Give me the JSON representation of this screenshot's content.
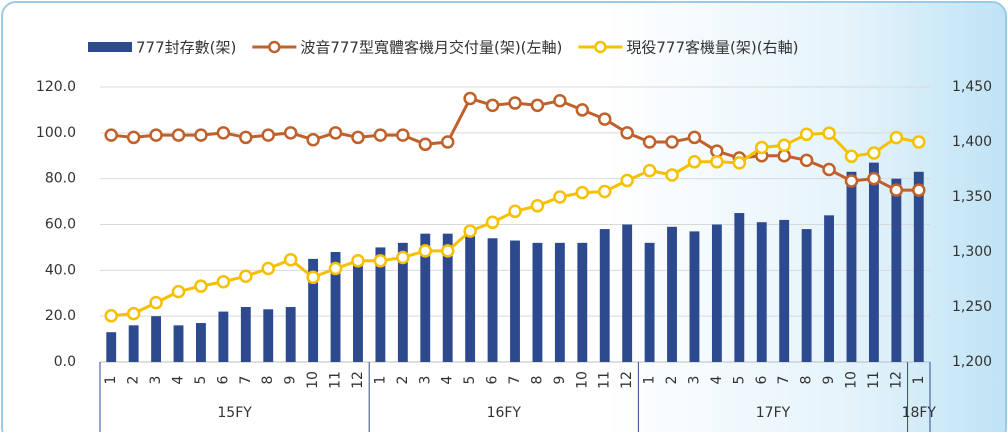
{
  "chart_data": {
    "type": "bar_line_combo",
    "category_groups": [
      {
        "label": "15FY",
        "categories": [
          "1",
          "2",
          "3",
          "4",
          "5",
          "6",
          "7",
          "8",
          "9",
          "10",
          "11",
          "12"
        ]
      },
      {
        "label": "16FY",
        "categories": [
          "1",
          "2",
          "3",
          "4",
          "5",
          "6",
          "7",
          "8",
          "9",
          "10",
          "11",
          "12"
        ]
      },
      {
        "label": "17FY",
        "categories": [
          "1",
          "2",
          "3",
          "4",
          "5",
          "6",
          "7",
          "8",
          "9",
          "10",
          "11",
          "12"
        ]
      },
      {
        "label": "18FY",
        "categories": [
          "1"
        ]
      }
    ],
    "series": [
      {
        "name": "777封存數(架)",
        "type": "bar",
        "color": "#2e4a8f",
        "axis": "y",
        "values": [
          13,
          16,
          20,
          16,
          17,
          22,
          24,
          23,
          24,
          45,
          48,
          44,
          50,
          52,
          56,
          56,
          55,
          54,
          53,
          52,
          52,
          52,
          58,
          60,
          52,
          59,
          57,
          60,
          65,
          61,
          62,
          58,
          64,
          83,
          87,
          80,
          83
        ]
      },
      {
        "name": "波音777型寬體客機月交付量(架)(左軸)",
        "type": "line",
        "color": "#c0602a",
        "axis": "y",
        "values": [
          99,
          98,
          99,
          99,
          99,
          100,
          98,
          99,
          100,
          97,
          100,
          98,
          99,
          99,
          95,
          96,
          115,
          112,
          113,
          112,
          114,
          110,
          106,
          100,
          96,
          96,
          98,
          92,
          89,
          90,
          90,
          88,
          84,
          79,
          80,
          75,
          75
        ]
      },
      {
        "name": "現役777客機量(架)(右軸)",
        "type": "line",
        "color": "#f5c000",
        "axis": "y2",
        "values": [
          1242,
          1244,
          1254,
          1264,
          1269,
          1273,
          1278,
          1285,
          1293,
          1277,
          1285,
          1292,
          1292,
          1295,
          1301,
          1301,
          1319,
          1327,
          1337,
          1342,
          1350,
          1354,
          1355,
          1365,
          1374,
          1370,
          1382,
          1382,
          1381,
          1395,
          1397,
          1407,
          1408,
          1387,
          1390,
          1404,
          1400
        ]
      }
    ],
    "ylim": [
      0,
      120
    ],
    "yticks": [
      {
        "value": 0,
        "label": "0.0"
      },
      {
        "value": 20,
        "label": "20.0"
      },
      {
        "value": 40,
        "label": "40.0"
      },
      {
        "value": 60,
        "label": "60.0"
      },
      {
        "value": 80,
        "label": "80.0"
      },
      {
        "value": 100,
        "label": "100.0"
      },
      {
        "value": 120,
        "label": "120.0"
      }
    ],
    "y2lim": [
      1200,
      1450
    ],
    "y2ticks": [
      {
        "value": 1200,
        "label": "1,200"
      },
      {
        "value": 1250,
        "label": "1,250"
      },
      {
        "value": 1300,
        "label": "1,300"
      },
      {
        "value": 1350,
        "label": "1,350"
      },
      {
        "value": 1400,
        "label": "1,400"
      },
      {
        "value": 1450,
        "label": "1,450"
      }
    ],
    "grid": true,
    "legend": "top"
  }
}
